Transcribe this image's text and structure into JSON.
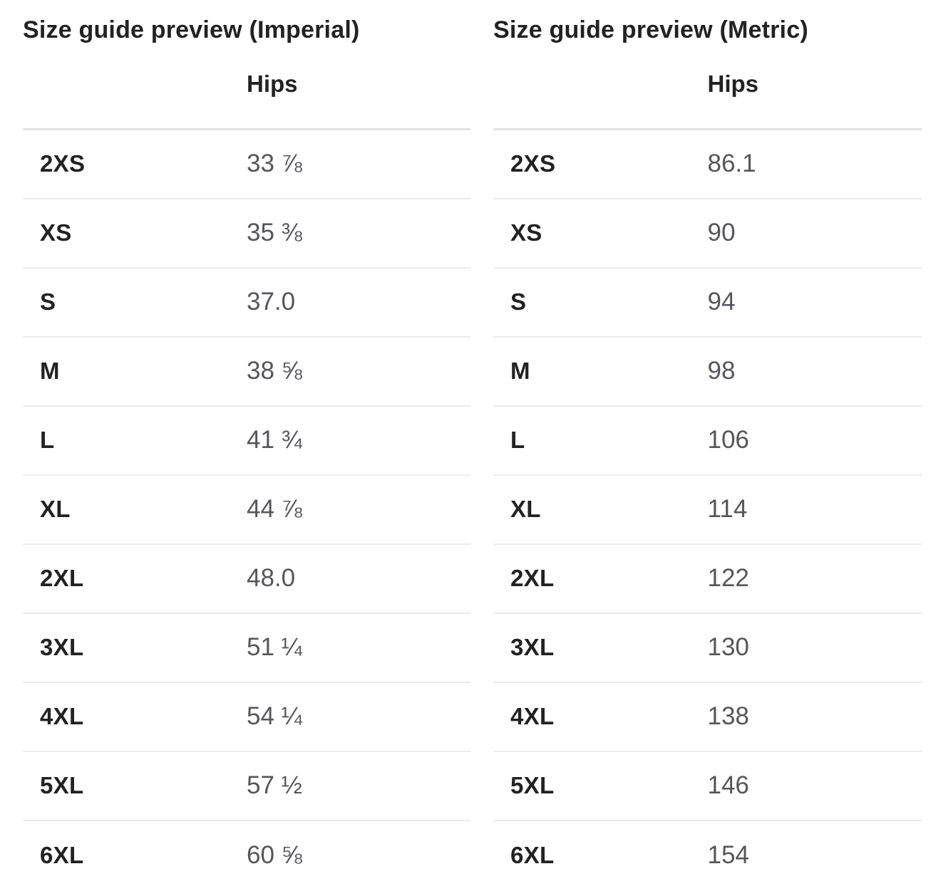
{
  "colors": {
    "heading": "#222222",
    "value": "#55565a",
    "divider_thick": "#e2e2e2",
    "divider_thin": "#ececec",
    "page_bg": "#ffffff"
  },
  "imperial": {
    "title": "Size guide preview (Imperial)",
    "column_header": "Hips",
    "rows": [
      {
        "size": "2XS",
        "value": "33 ⅞"
      },
      {
        "size": "XS",
        "value": "35 ⅜"
      },
      {
        "size": "S",
        "value": "37.0"
      },
      {
        "size": "M",
        "value": "38 ⅝"
      },
      {
        "size": "L",
        "value": "41 ¾"
      },
      {
        "size": "XL",
        "value": "44 ⅞"
      },
      {
        "size": "2XL",
        "value": "48.0"
      },
      {
        "size": "3XL",
        "value": "51 ¼"
      },
      {
        "size": "4XL",
        "value": "54 ¼"
      },
      {
        "size": "5XL",
        "value": "57 ½"
      },
      {
        "size": "6XL",
        "value": "60 ⅝"
      }
    ]
  },
  "metric": {
    "title": "Size guide preview (Metric)",
    "column_header": "Hips",
    "rows": [
      {
        "size": "2XS",
        "value": "86.1"
      },
      {
        "size": "XS",
        "value": "90"
      },
      {
        "size": "S",
        "value": "94"
      },
      {
        "size": "M",
        "value": "98"
      },
      {
        "size": "L",
        "value": "106"
      },
      {
        "size": "XL",
        "value": "114"
      },
      {
        "size": "2XL",
        "value": "122"
      },
      {
        "size": "3XL",
        "value": "130"
      },
      {
        "size": "4XL",
        "value": "138"
      },
      {
        "size": "5XL",
        "value": "146"
      },
      {
        "size": "6XL",
        "value": "154"
      }
    ]
  }
}
